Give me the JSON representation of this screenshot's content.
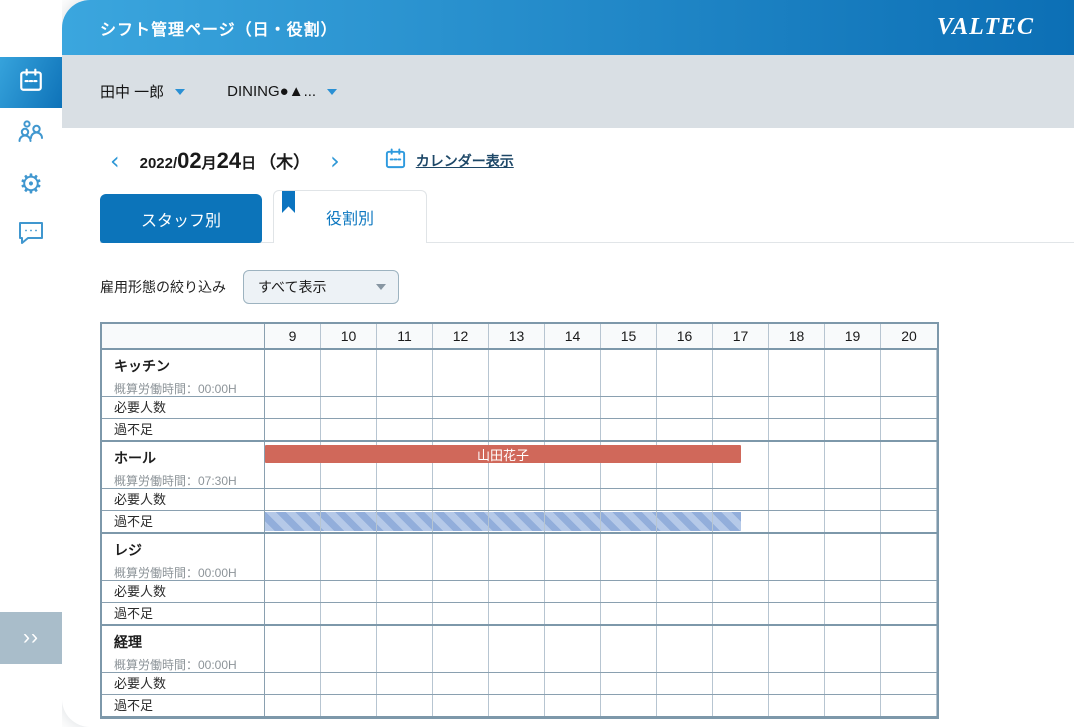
{
  "app": {
    "title": "シフト管理ページ（日・役割）",
    "brand": "VALTEC"
  },
  "sidebar": {
    "items": [
      {
        "icon": "calendar-icon",
        "active": true
      },
      {
        "icon": "staff-group-icon",
        "active": false
      },
      {
        "icon": "settings-gear-icon",
        "active": false
      },
      {
        "icon": "chat-icon",
        "active": false
      }
    ],
    "gear_glyph": "⚙",
    "expand_icon": "››"
  },
  "subheader": {
    "user_select": "田中 一郎",
    "store_select": "DINING●▲..."
  },
  "date_nav": {
    "prev_icon": "‹",
    "next_icon": "›",
    "year_prefix": "2022/",
    "month": "02",
    "month_unit": "月",
    "day": "24",
    "day_unit": "日",
    "weekday": "（木）",
    "calendar_link_label": "カレンダー表示"
  },
  "tabs": [
    {
      "label": "スタッフ別",
      "active": false
    },
    {
      "label": "役割別",
      "active": true
    }
  ],
  "filter": {
    "label": "雇用形態の絞り込み",
    "selected": "すべて表示"
  },
  "schedule": {
    "hours": [
      "9",
      "10",
      "11",
      "12",
      "13",
      "14",
      "15",
      "16",
      "17",
      "18",
      "19",
      "20"
    ],
    "axis": {
      "start": 9,
      "end": 21
    },
    "worktime_prefix": "概算労働時間：",
    "sub_row_labels": {
      "required": "必要人数",
      "balance": "過不足"
    },
    "roles": [
      {
        "name": "キッチン",
        "worktime": "00:00H",
        "shifts": [],
        "shortages": []
      },
      {
        "name": "ホール",
        "worktime": "07:30H",
        "shifts": [
          {
            "label": "山田花子",
            "start": 9,
            "end": 17.5
          }
        ],
        "shortages": [
          {
            "start": 9,
            "end": 17.5
          }
        ]
      },
      {
        "name": "レジ",
        "worktime": "00:00H",
        "shifts": [],
        "shortages": []
      },
      {
        "name": "経理",
        "worktime": "00:00H",
        "shifts": [],
        "shortages": []
      }
    ]
  },
  "colors": {
    "accent": "#0c74ba",
    "header_gradient_start": "#3ba6de",
    "header_gradient_end": "#0c6fb5",
    "shift_bar": "#d0685a",
    "shortage_light": "#b5c9e8",
    "shortage_dark": "#92aedb",
    "table_border": "#7d98aa"
  }
}
